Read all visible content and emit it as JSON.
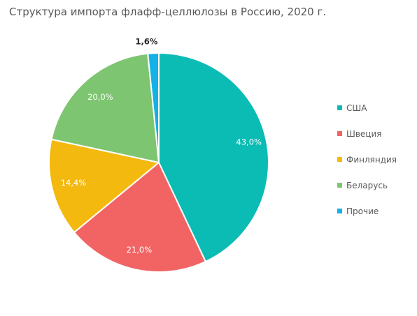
{
  "chart_data": {
    "type": "pie",
    "title": "Структура импорта флафф-целлюлозы в Россию, 2020 г.",
    "categories": [
      "США",
      "Швеция",
      "Финляндия",
      "Беларусь",
      "Прочие"
    ],
    "values": [
      43.0,
      21.0,
      14.4,
      20.0,
      1.6
    ],
    "data_labels": [
      "43,0%",
      "21,0%",
      "14,4%",
      "20,0%",
      "1,6%"
    ],
    "colors": [
      "#0bbcb5",
      "#f26464",
      "#f4b90f",
      "#7ec571",
      "#14b1e6"
    ],
    "unit": "%",
    "legend_position": "right",
    "start_angle": "12 o'clock",
    "direction": "clockwise"
  }
}
